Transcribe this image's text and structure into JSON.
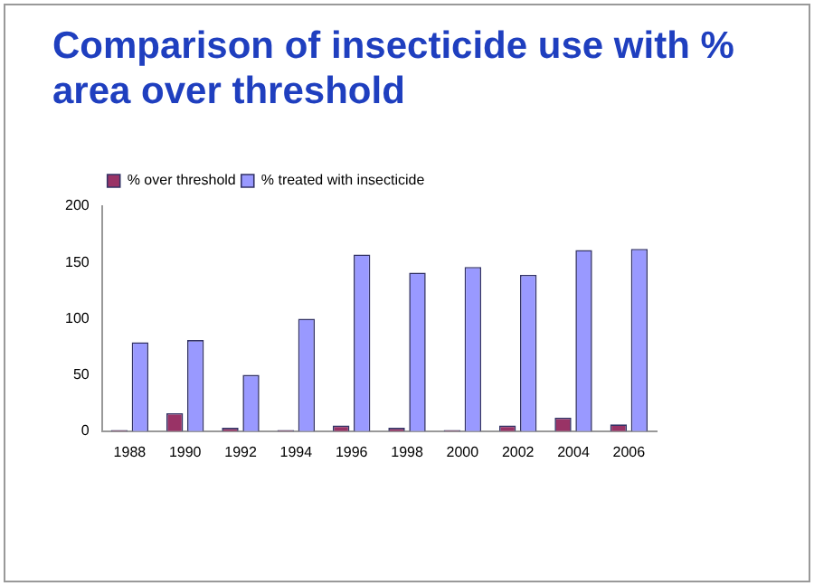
{
  "chart_data": {
    "type": "bar",
    "title": "Comparison of insecticide use with % area over threshold",
    "categories": [
      "1988",
      "1990",
      "1992",
      "1994",
      "1996",
      "1998",
      "2000",
      "2002",
      "2004",
      "2006"
    ],
    "series": [
      {
        "name": "% over threshold",
        "color": "#993366",
        "values": [
          1,
          16,
          3,
          1,
          5,
          3,
          1,
          5,
          12,
          6
        ]
      },
      {
        "name": "% treated with insecticide",
        "color": "#9999ff",
        "values": [
          79,
          81,
          50,
          100,
          157,
          141,
          146,
          139,
          161,
          162
        ]
      }
    ],
    "ylim": [
      0,
      200
    ],
    "yticks": [
      0,
      50,
      100,
      150,
      200
    ],
    "grid": false,
    "legend": "top left"
  }
}
